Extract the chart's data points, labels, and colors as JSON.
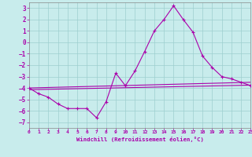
{
  "xlabel": "Windchill (Refroidissement éolien,°C)",
  "bg_color": "#c8ecec",
  "grid_color": "#9dcfcf",
  "line_color": "#aa00aa",
  "xlim": [
    0,
    23
  ],
  "ylim": [
    -7.5,
    3.5
  ],
  "x_ticks": [
    0,
    1,
    2,
    3,
    4,
    5,
    6,
    7,
    8,
    9,
    10,
    11,
    12,
    13,
    14,
    15,
    16,
    17,
    18,
    19,
    20,
    21,
    22,
    23
  ],
  "y_ticks": [
    -7,
    -6,
    -5,
    -4,
    -3,
    -2,
    -1,
    0,
    1,
    2,
    3
  ],
  "line1_x": [
    0,
    1,
    2,
    3,
    4,
    5,
    6,
    7,
    8,
    9,
    10,
    11,
    12,
    13,
    14,
    15,
    16,
    17,
    18,
    19,
    20,
    21,
    22,
    23
  ],
  "line1_y": [
    -4.0,
    -4.5,
    -4.8,
    -5.4,
    -5.8,
    -5.8,
    -5.8,
    -6.6,
    -5.2,
    -2.7,
    -3.8,
    -2.5,
    -0.8,
    1.0,
    2.0,
    3.2,
    2.0,
    0.9,
    -1.2,
    -2.2,
    -3.0,
    -3.2,
    -3.5,
    -3.8
  ],
  "line2_x": [
    0,
    23
  ],
  "line2_y": [
    -4.0,
    -3.6
  ],
  "line3_x": [
    0,
    15,
    23
  ],
  "line3_y": [
    -4.0,
    -3.5,
    -3.6
  ],
  "line4_x": [
    0,
    23
  ],
  "line4_y": [
    -4.1,
    -3.7
  ]
}
